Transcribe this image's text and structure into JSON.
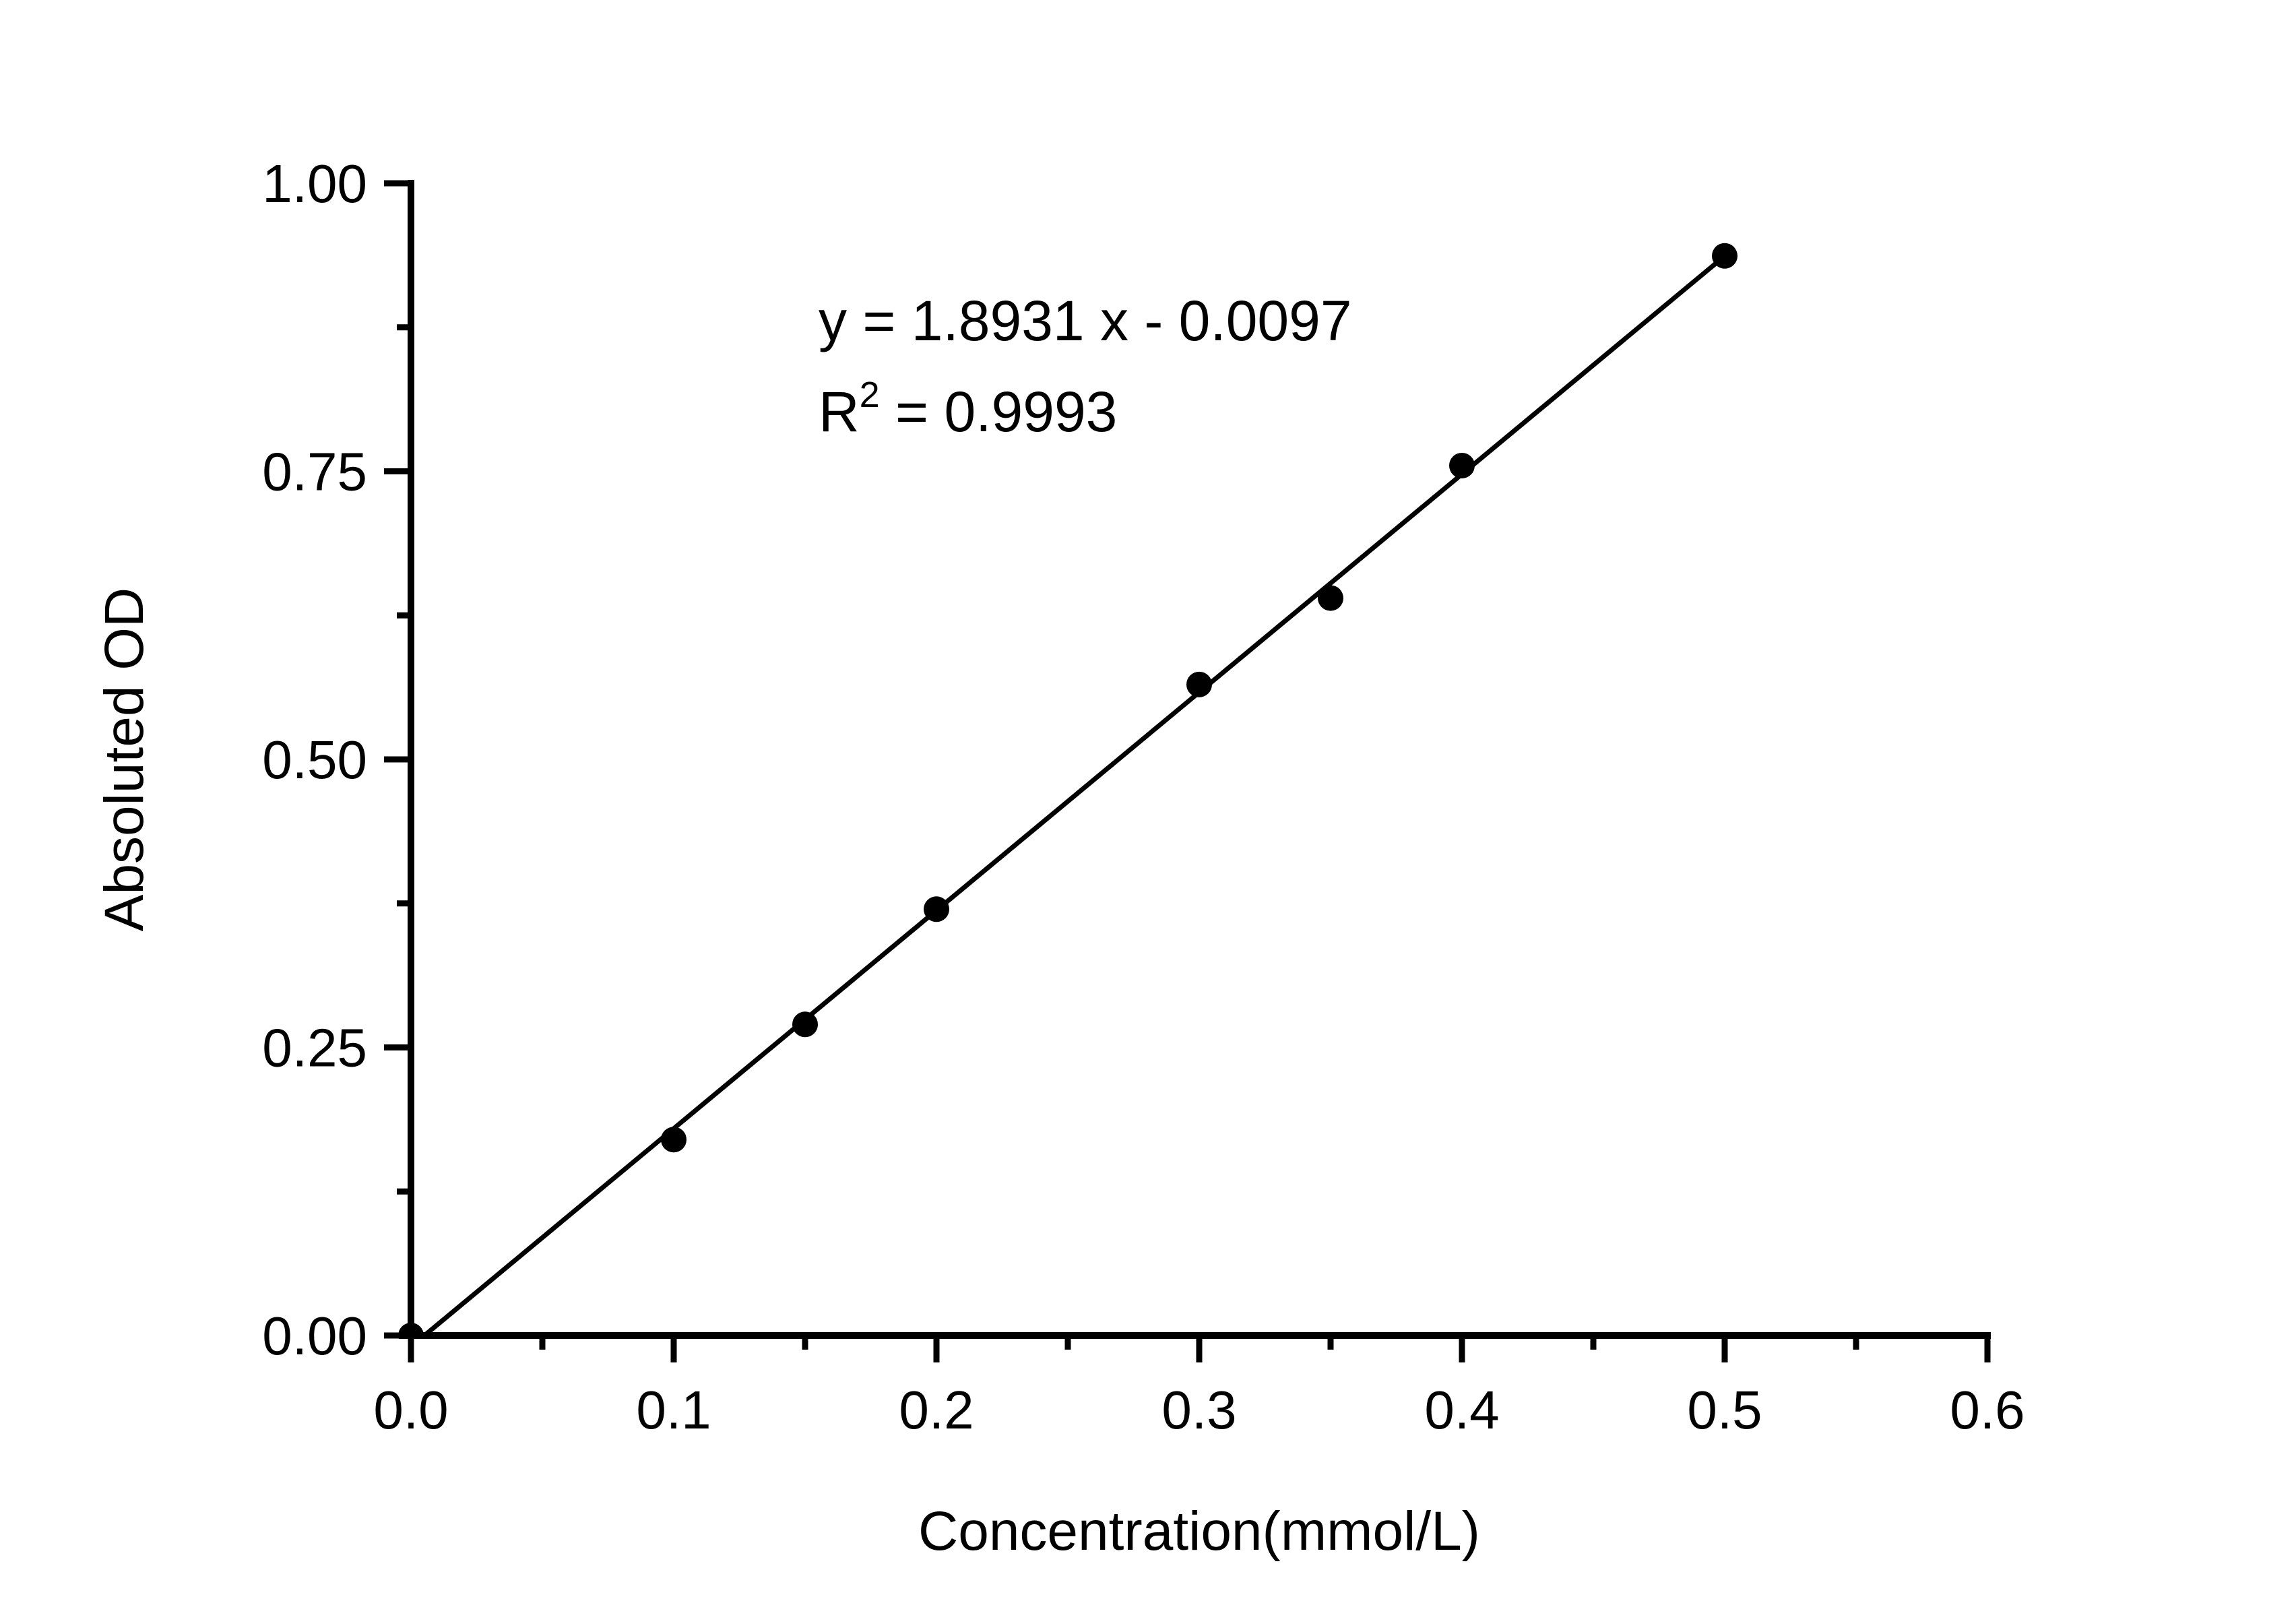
{
  "chart_data": {
    "type": "scatter",
    "title": "",
    "xlabel": "Concentration(mmol/L)",
    "ylabel": "Absoluted OD",
    "colors": {
      "background": "#ffffff",
      "foreground": "#000000"
    },
    "x_axis": {
      "label": "Concentration(mmol/L)",
      "range": [
        0.0,
        0.6
      ],
      "ticks": [
        {
          "value": 0.0,
          "label": "0.0"
        },
        {
          "value": 0.1,
          "label": "0.1"
        },
        {
          "value": 0.2,
          "label": "0.2"
        },
        {
          "value": 0.3,
          "label": "0.3"
        },
        {
          "value": 0.4,
          "label": "0.4"
        },
        {
          "value": 0.5,
          "label": "0.5"
        },
        {
          "value": 0.6,
          "label": "0.6"
        }
      ],
      "minor_ticks": [
        0.05,
        0.15,
        0.25,
        0.35,
        0.45,
        0.55
      ]
    },
    "y_axis": {
      "label": "Absoluted OD",
      "range": [
        0.0,
        1.0
      ],
      "ticks": [
        {
          "value": 0.0,
          "label": "0.00"
        },
        {
          "value": 0.25,
          "label": "0.25"
        },
        {
          "value": 0.5,
          "label": "0.50"
        },
        {
          "value": 0.75,
          "label": "0.75"
        },
        {
          "value": 1.0,
          "label": "1.00"
        }
      ],
      "minor_ticks": [
        0.125,
        0.375,
        0.625,
        0.875
      ]
    },
    "points": [
      {
        "x": 0.0,
        "y": 0.0
      },
      {
        "x": 0.1,
        "y": 0.17
      },
      {
        "x": 0.15,
        "y": 0.27
      },
      {
        "x": 0.2,
        "y": 0.37
      },
      {
        "x": 0.3,
        "y": 0.565
      },
      {
        "x": 0.35,
        "y": 0.64
      },
      {
        "x": 0.4,
        "y": 0.755
      },
      {
        "x": 0.5,
        "y": 0.937
      }
    ],
    "fit": {
      "slope": 1.8931,
      "intercept": -0.0097,
      "x_start": 0.0,
      "x_end": 0.5,
      "equation": "y = 1.8931 x - 0.0097",
      "r2_base": "R",
      "r2_exponent": "2",
      "r2_rest": " = 0.9993"
    }
  }
}
